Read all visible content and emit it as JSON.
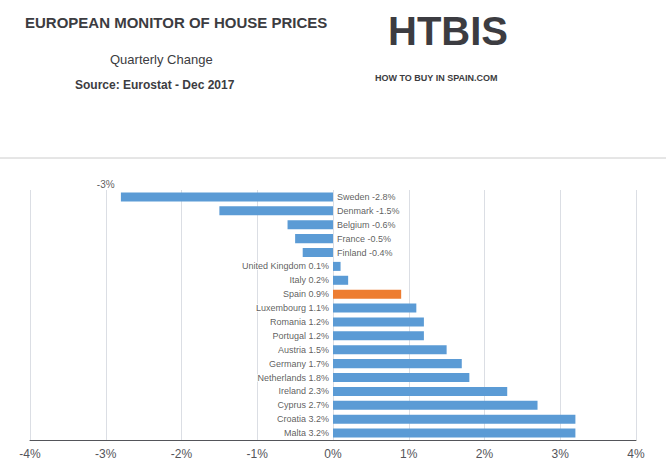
{
  "chart_data": {
    "type": "bar",
    "orientation": "horizontal",
    "title": "EUROPEAN MONITOR OF HOUSE PRICES",
    "subtitle": "Quarterly Change",
    "source": "Source: Eurostat - Dec 2017",
    "logo_text": "HTBIS",
    "logo_subtext": "HOW TO BUY IN SPAIN.COM",
    "categories": [
      "Sweden",
      "Denmark",
      "Belgium",
      "France",
      "Finland",
      "United Kingdom",
      "Italy",
      "Spain",
      "Luxembourg",
      "Romania",
      "Portugal",
      "Austria",
      "Germany",
      "Netherlands",
      "Ireland",
      "Cyprus",
      "Croatia",
      "Malta"
    ],
    "values": [
      -2.8,
      -1.5,
      -0.6,
      -0.5,
      -0.4,
      0.1,
      0.2,
      0.9,
      1.1,
      1.2,
      1.2,
      1.5,
      1.7,
      1.8,
      2.3,
      2.7,
      3.2,
      3.2
    ],
    "value_labels": [
      "Sweden -2.8%",
      "Denmark -1.5%",
      "Belgium -0.6%",
      "France -0.5%",
      "Finland -0.4%",
      "United Kingdom 0.1%",
      "Italy 0.2%",
      "Spain 0.9%",
      "Luxembourg 1.1%",
      "Romania 1.2%",
      "Portugal 1.2%",
      "Austria 1.5%",
      "Germany 1.7%",
      "Netherlands 1.8%",
      "Ireland 2.3%",
      "Cyprus 2.7%",
      "Croatia 3.2%",
      "Malta 3.2%"
    ],
    "colors": [
      "#5b9bd5",
      "#5b9bd5",
      "#5b9bd5",
      "#5b9bd5",
      "#5b9bd5",
      "#5b9bd5",
      "#5b9bd5",
      "#ed7d31",
      "#5b9bd5",
      "#5b9bd5",
      "#5b9bd5",
      "#5b9bd5",
      "#5b9bd5",
      "#5b9bd5",
      "#5b9bd5",
      "#5b9bd5",
      "#5b9bd5",
      "#5b9bd5"
    ],
    "data_labels": true,
    "annotations": [
      {
        "text": "-3%",
        "x": -3
      }
    ],
    "xlim": [
      -4,
      4
    ],
    "xticks": [
      {
        "value": -4,
        "label": "-4%"
      },
      {
        "value": -3,
        "label": "-3%"
      },
      {
        "value": -2,
        "label": "-2%"
      },
      {
        "value": -1,
        "label": "-1%"
      },
      {
        "value": 0,
        "label": "0%"
      },
      {
        "value": 1,
        "label": "1%"
      },
      {
        "value": 2,
        "label": "2%"
      },
      {
        "value": 3,
        "label": "3%"
      },
      {
        "value": 4,
        "label": "4%"
      }
    ],
    "grid": true,
    "tick_labels": "x"
  }
}
